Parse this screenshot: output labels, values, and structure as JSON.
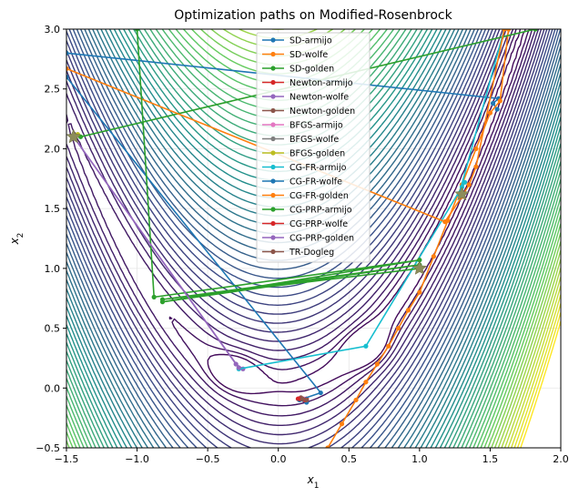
{
  "chart_data": {
    "type": "line",
    "title": "Optimization paths on Modified-Rosenbrock",
    "xlabel": "x",
    "xlabel_sub": "1",
    "ylabel": "x",
    "ylabel_sub": "2",
    "xlim": [
      -1.5,
      2.0
    ],
    "ylim": [
      -0.5,
      3.0
    ],
    "x_ticks": [
      -1.5,
      -1.0,
      -0.5,
      0.0,
      0.5,
      1.0,
      1.5,
      2.0
    ],
    "y_ticks": [
      -0.5,
      0.0,
      0.5,
      1.0,
      1.5,
      2.0,
      2.5,
      3.0
    ],
    "x_tick_labels": [
      "−1.5",
      "−1.0",
      "−0.5",
      "0.0",
      "0.5",
      "1.0",
      "1.5",
      "2.0"
    ],
    "y_tick_labels": [
      "−0.5",
      "0.0",
      "0.5",
      "1.0",
      "1.5",
      "2.0",
      "2.5",
      "3.0"
    ],
    "grid": true,
    "legend_position": "top-center",
    "minima": [
      [
        1.0,
        1.0
      ],
      [
        -1.45,
        2.1
      ],
      [
        1.3,
        1.62
      ]
    ],
    "series": [
      {
        "name": "SD-armijo",
        "color": "#1f77b4",
        "points": [
          [
            -1.5,
            2.8
          ],
          [
            1.56,
            2.42
          ],
          [
            1.52,
            2.38
          ],
          [
            1.55,
            2.33
          ]
        ]
      },
      {
        "name": "SD-wolfe",
        "color": "#ff7f0e",
        "points": [
          [
            0.35,
            -0.5
          ],
          [
            0.45,
            -0.3
          ],
          [
            0.55,
            -0.1
          ],
          [
            0.62,
            0.05
          ],
          [
            0.7,
            0.2
          ],
          [
            0.78,
            0.35
          ],
          [
            0.85,
            0.5
          ],
          [
            0.92,
            0.65
          ],
          [
            1.0,
            0.8
          ],
          [
            1.1,
            1.1
          ],
          [
            1.2,
            1.4
          ],
          [
            1.3,
            1.7
          ],
          [
            1.4,
            2.0
          ],
          [
            1.5,
            2.3
          ],
          [
            1.57,
            2.4
          ],
          [
            1.63,
            3.0
          ]
        ]
      },
      {
        "name": "SD-golden",
        "color": "#2ca02c",
        "points": [
          [
            -1.4,
            2.1
          ],
          [
            1.82,
            3.0
          ]
        ]
      },
      {
        "name": "Newton-armijo",
        "color": "#d62728",
        "points": [
          [
            0.14,
            -0.09
          ],
          [
            0.18,
            -0.1
          ],
          [
            0.2,
            -0.09
          ]
        ]
      },
      {
        "name": "Newton-wolfe",
        "color": "#9467bd",
        "points": [
          [
            -1.45,
            2.1
          ],
          [
            -0.3,
            0.2
          ],
          [
            -0.25,
            0.16
          ]
        ]
      },
      {
        "name": "Newton-golden",
        "color": "#8c564b",
        "points": [
          [
            0.16,
            -0.08
          ],
          [
            0.2,
            -0.1
          ]
        ]
      },
      {
        "name": "BFGS-armijo",
        "color": "#e377c2",
        "points": [
          [
            0.18,
            -0.09
          ],
          [
            0.2,
            -0.1
          ]
        ]
      },
      {
        "name": "BFGS-wolfe",
        "color": "#7f7f7f",
        "points": [
          [
            -1.45,
            2.1
          ],
          [
            -1.44,
            2.09
          ]
        ]
      },
      {
        "name": "BFGS-golden",
        "color": "#bcbd22",
        "points": [
          [
            -1.43,
            2.11
          ],
          [
            -1.42,
            2.12
          ]
        ]
      },
      {
        "name": "CG-FR-armijo",
        "color": "#17becf",
        "points": [
          [
            -0.28,
            0.16
          ],
          [
            0.62,
            0.35
          ],
          [
            1.3,
            1.68
          ],
          [
            1.32,
            1.72
          ],
          [
            1.28,
            1.62
          ],
          [
            1.6,
            3.0
          ]
        ]
      },
      {
        "name": "CG-FR-wolfe",
        "color": "#1f77b4",
        "points": [
          [
            -1.5,
            2.6
          ],
          [
            0.3,
            -0.04
          ],
          [
            0.15,
            -0.1
          ],
          [
            0.2,
            -0.12
          ]
        ]
      },
      {
        "name": "CG-FR-golden",
        "color": "#ff7f0e",
        "points": [
          [
            -1.5,
            2.67
          ],
          [
            1.18,
            1.39
          ],
          [
            1.3,
            1.6
          ],
          [
            1.35,
            1.7
          ],
          [
            1.4,
            1.85
          ],
          [
            1.6,
            3.0
          ]
        ]
      },
      {
        "name": "CG-PRP-armijo",
        "color": "#2ca02c",
        "points": [
          [
            -1.0,
            3.0
          ],
          [
            -0.88,
            0.76
          ],
          [
            1.0,
            1.07
          ],
          [
            -0.82,
            0.72
          ],
          [
            1.0,
            1.03
          ],
          [
            -0.82,
            0.74
          ],
          [
            1.0,
            1.0
          ]
        ]
      },
      {
        "name": "CG-PRP-wolfe",
        "color": "#d62728",
        "points": [
          [
            0.15,
            -0.09
          ],
          [
            0.19,
            -0.1
          ]
        ]
      },
      {
        "name": "CG-PRP-golden",
        "color": "#9467bd",
        "points": [
          [
            -1.45,
            2.1
          ],
          [
            -0.28,
            0.17
          ]
        ]
      },
      {
        "name": "TR-Dogleg",
        "color": "#8c564b",
        "points": [
          [
            0.17,
            -0.09
          ],
          [
            0.2,
            -0.1
          ]
        ]
      }
    ]
  }
}
